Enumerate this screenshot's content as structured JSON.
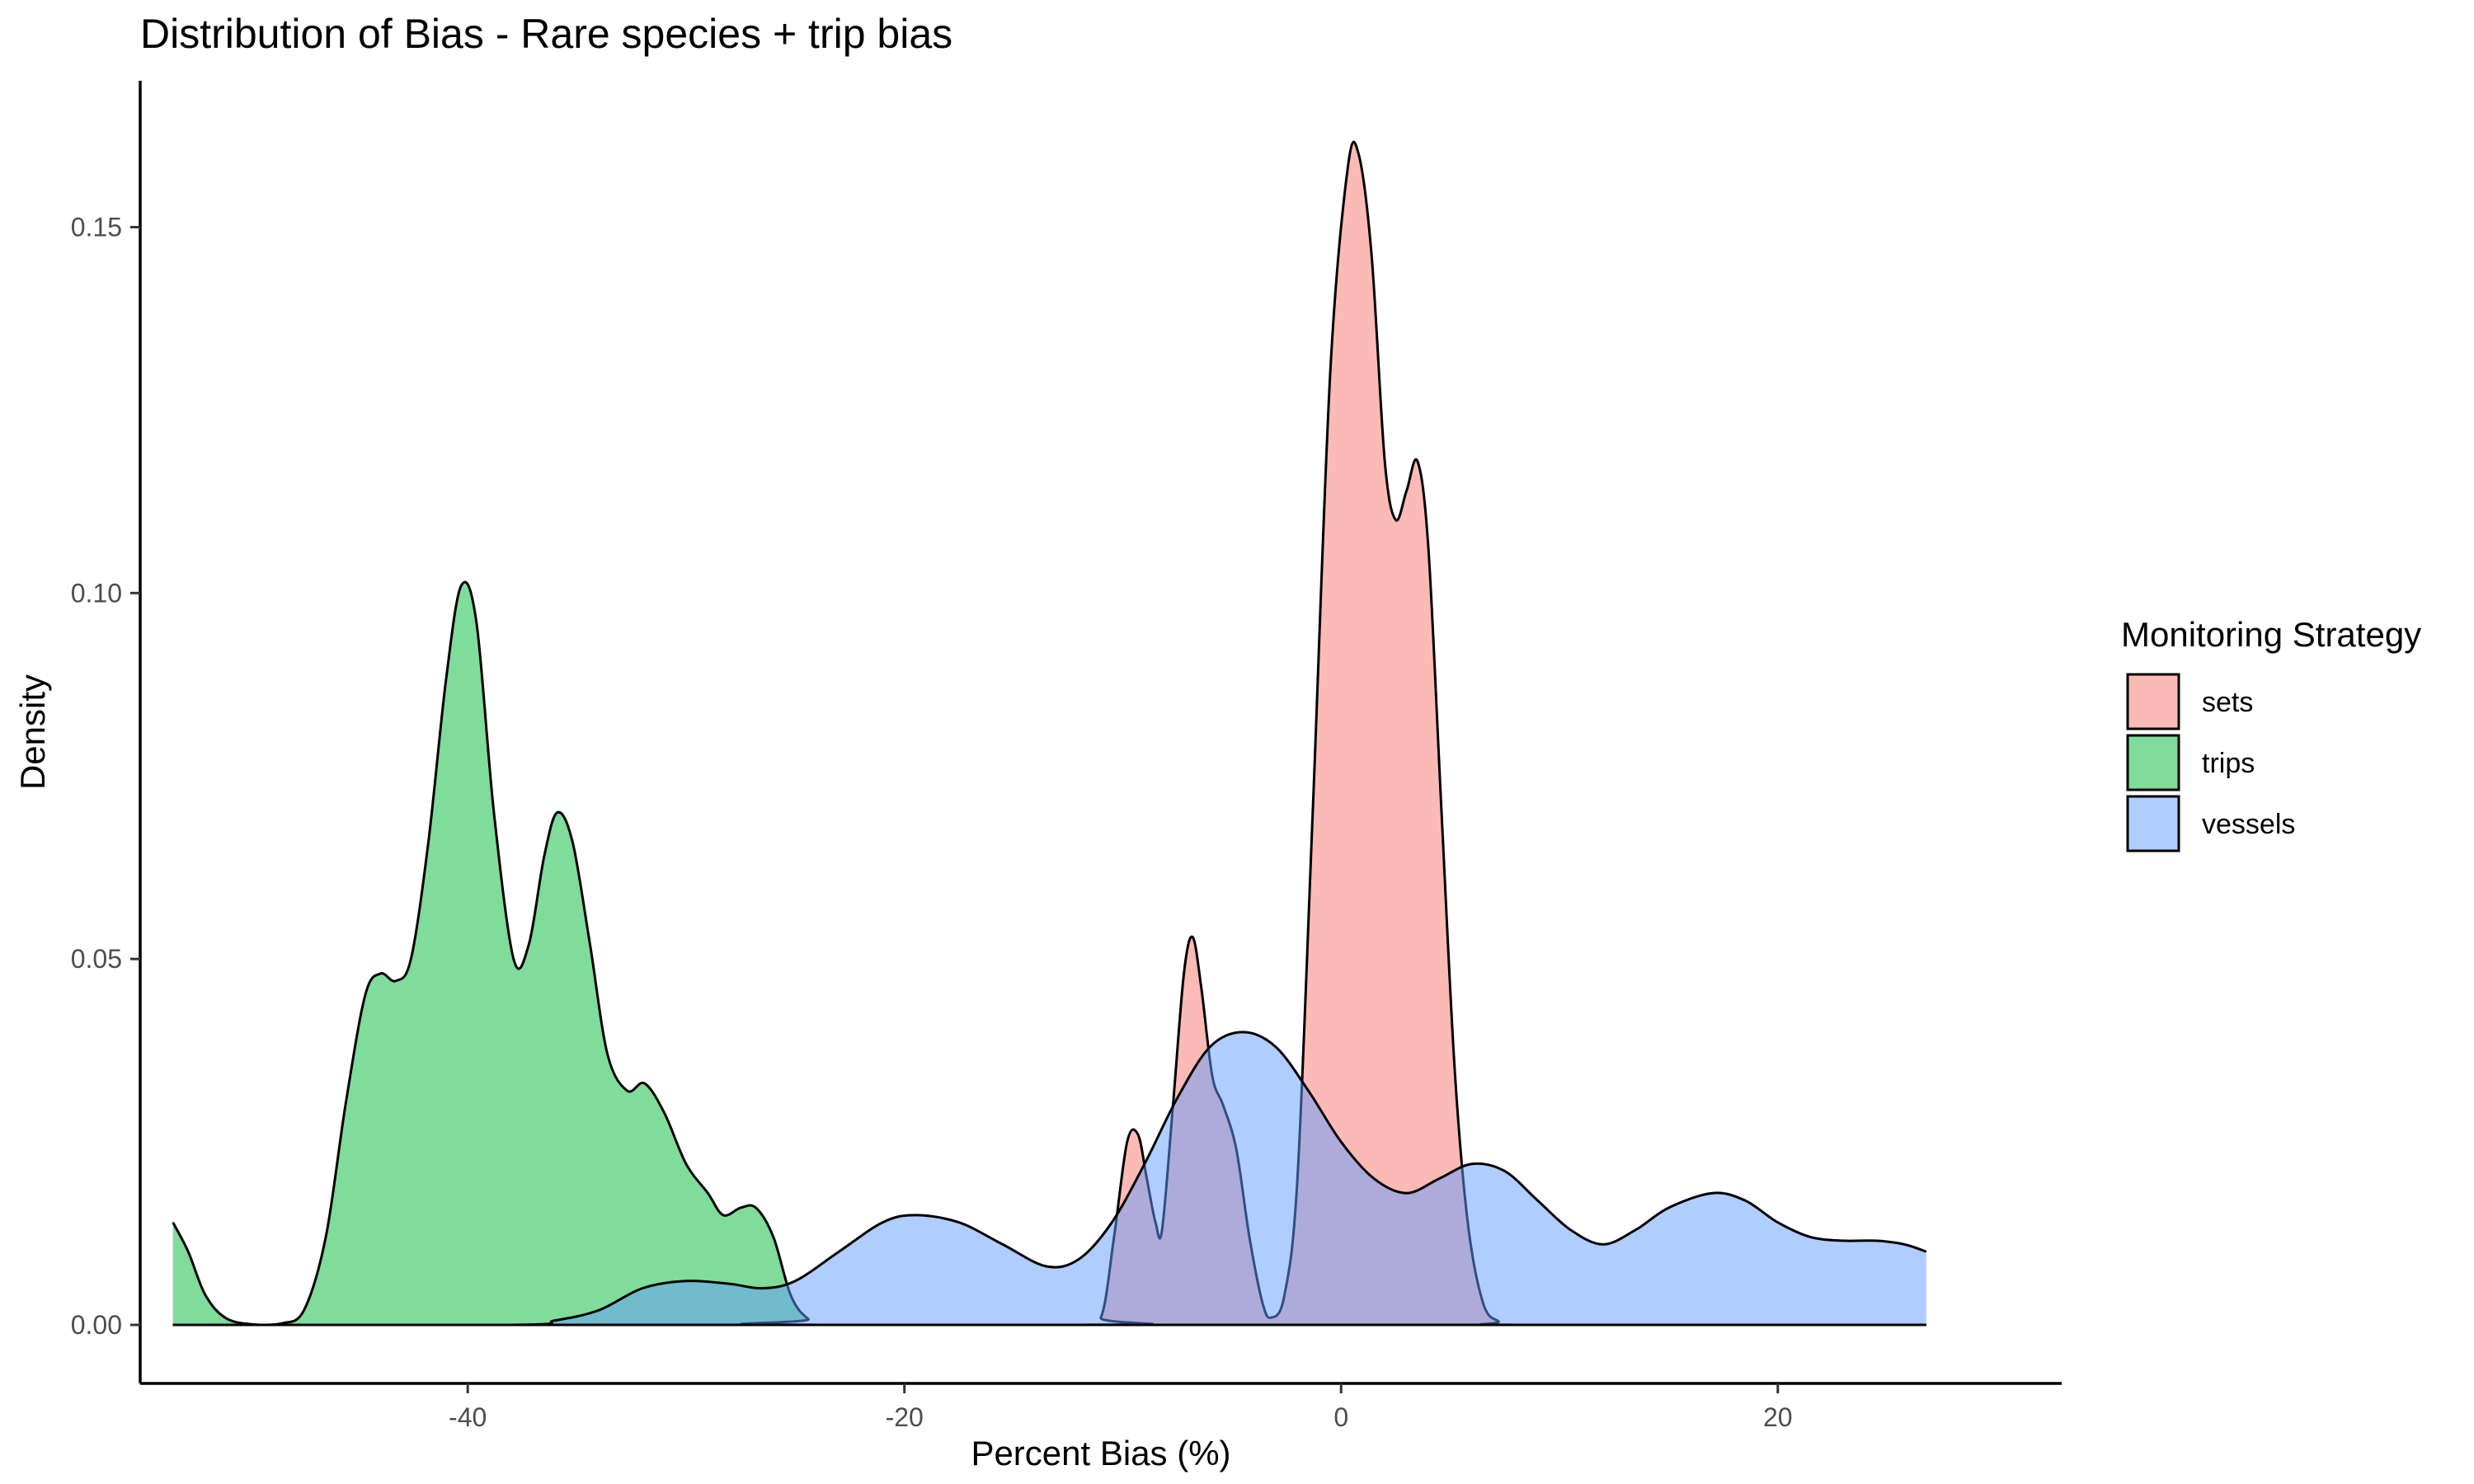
{
  "chart_data": {
    "type": "area",
    "title": "Distribution of Bias - Rare species + trip bias",
    "xlabel": "Percent Bias (%)",
    "ylabel": "Density",
    "xlim": [
      -55,
      33
    ],
    "ylim": [
      -0.008,
      0.17
    ],
    "x_ticks": [
      -40,
      -20,
      0,
      20
    ],
    "x_tick_labels": [
      "-40",
      "-20",
      "0",
      "20"
    ],
    "y_ticks": [
      0.0,
      0.05,
      0.1,
      0.15
    ],
    "y_tick_labels": [
      "0.00",
      "0.05",
      "0.10",
      "0.15"
    ],
    "grid": false,
    "legend": {
      "title": "Monitoring Strategy",
      "position": "right"
    },
    "series": [
      {
        "name": "sets",
        "color": "#F8766D",
        "points": [
          [
            -53.5,
            0
          ],
          [
            -12,
            0
          ],
          [
            -11,
            0.001
          ],
          [
            -10.4,
            0.012
          ],
          [
            -9.8,
            0.025
          ],
          [
            -9.3,
            0.026
          ],
          [
            -8.9,
            0.02
          ],
          [
            -8.5,
            0.014
          ],
          [
            -8.2,
            0.013
          ],
          [
            -7.7,
            0.03
          ],
          [
            -7.2,
            0.048
          ],
          [
            -6.8,
            0.053
          ],
          [
            -6.4,
            0.046
          ],
          [
            -5.9,
            0.034
          ],
          [
            -5.4,
            0.03
          ],
          [
            -4.8,
            0.024
          ],
          [
            -4.2,
            0.012
          ],
          [
            -3.6,
            0.003
          ],
          [
            -3.2,
            0.001
          ],
          [
            -2.6,
            0.004
          ],
          [
            -2.0,
            0.02
          ],
          [
            -1.3,
            0.07
          ],
          [
            -0.5,
            0.13
          ],
          [
            0.3,
            0.158
          ],
          [
            0.8,
            0.16
          ],
          [
            1.4,
            0.146
          ],
          [
            2.0,
            0.118
          ],
          [
            2.5,
            0.11
          ],
          [
            3.0,
            0.114
          ],
          [
            3.5,
            0.118
          ],
          [
            4.0,
            0.106
          ],
          [
            4.6,
            0.07
          ],
          [
            5.2,
            0.035
          ],
          [
            5.8,
            0.014
          ],
          [
            6.5,
            0.003
          ],
          [
            7.2,
            0.0005
          ],
          [
            8,
            0
          ],
          [
            26.8,
            0
          ]
        ]
      },
      {
        "name": "trips",
        "color": "#00BA38",
        "points": [
          [
            -53.5,
            0.014
          ],
          [
            -52.8,
            0.01
          ],
          [
            -52.0,
            0.004
          ],
          [
            -51.0,
            0.0008
          ],
          [
            -49.5,
            0
          ],
          [
            -48.5,
            0.0002
          ],
          [
            -47.5,
            0.002
          ],
          [
            -46.5,
            0.012
          ],
          [
            -45.6,
            0.03
          ],
          [
            -44.7,
            0.045
          ],
          [
            -44.0,
            0.048
          ],
          [
            -43.3,
            0.047
          ],
          [
            -42.6,
            0.05
          ],
          [
            -41.8,
            0.066
          ],
          [
            -41.0,
            0.088
          ],
          [
            -40.3,
            0.101
          ],
          [
            -39.6,
            0.096
          ],
          [
            -38.8,
            0.07
          ],
          [
            -37.9,
            0.05
          ],
          [
            -37.2,
            0.052
          ],
          [
            -36.5,
            0.064
          ],
          [
            -35.9,
            0.07
          ],
          [
            -35.2,
            0.066
          ],
          [
            -34.4,
            0.052
          ],
          [
            -33.6,
            0.037
          ],
          [
            -32.7,
            0.032
          ],
          [
            -31.9,
            0.033
          ],
          [
            -31.0,
            0.029
          ],
          [
            -30.0,
            0.022
          ],
          [
            -29.0,
            0.018
          ],
          [
            -28.3,
            0.015
          ],
          [
            -27.5,
            0.016
          ],
          [
            -26.8,
            0.016
          ],
          [
            -26.0,
            0.012
          ],
          [
            -25.2,
            0.004
          ],
          [
            -24.4,
            0.0008
          ],
          [
            -23.5,
            0
          ],
          [
            26.8,
            0
          ]
        ]
      },
      {
        "name": "vessels",
        "color": "#619CFF",
        "points": [
          [
            -53.5,
            0
          ],
          [
            -38,
            0
          ],
          [
            -36,
            0.0006
          ],
          [
            -34,
            0.002
          ],
          [
            -32,
            0.005
          ],
          [
            -30,
            0.006
          ],
          [
            -28,
            0.0056
          ],
          [
            -26.5,
            0.005
          ],
          [
            -25,
            0.006
          ],
          [
            -23,
            0.01
          ],
          [
            -21,
            0.014
          ],
          [
            -19.5,
            0.015
          ],
          [
            -17.5,
            0.014
          ],
          [
            -15.5,
            0.011
          ],
          [
            -13.5,
            0.008
          ],
          [
            -12,
            0.009
          ],
          [
            -10.5,
            0.014
          ],
          [
            -9,
            0.022
          ],
          [
            -7.5,
            0.031
          ],
          [
            -6.0,
            0.038
          ],
          [
            -4.5,
            0.04
          ],
          [
            -3.0,
            0.038
          ],
          [
            -1.5,
            0.032
          ],
          [
            0,
            0.025
          ],
          [
            1.5,
            0.02
          ],
          [
            3.0,
            0.018
          ],
          [
            4.5,
            0.02
          ],
          [
            6.0,
            0.022
          ],
          [
            7.5,
            0.021
          ],
          [
            9,
            0.017
          ],
          [
            10.5,
            0.013
          ],
          [
            12,
            0.011
          ],
          [
            13.5,
            0.013
          ],
          [
            15,
            0.016
          ],
          [
            17,
            0.018
          ],
          [
            18.5,
            0.017
          ],
          [
            20,
            0.014
          ],
          [
            21.5,
            0.012
          ],
          [
            23,
            0.0115
          ],
          [
            24.5,
            0.0115
          ],
          [
            25.8,
            0.011
          ],
          [
            26.8,
            0.01
          ]
        ]
      }
    ]
  }
}
